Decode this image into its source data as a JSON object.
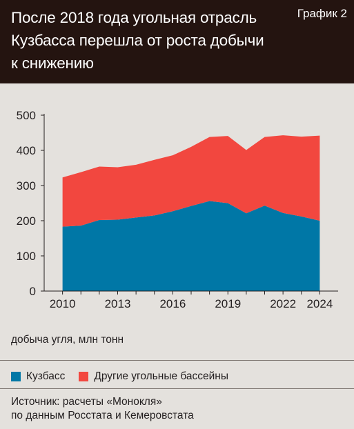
{
  "header": {
    "title_lines": [
      "После 2018 года угольная отрасль",
      "Кузбасса перешла от роста добычи",
      "к снижению"
    ],
    "chart_label": "График 2"
  },
  "unit_note": "добыча угля, млн тонн",
  "legend": [
    {
      "label": "Кузбасс",
      "color": "#0077a6"
    },
    {
      "label": "Другие угольные бассейны",
      "color": "#f2473f"
    }
  ],
  "source_lines": [
    "Источник: расчеты «Монокля»",
    "по данным Росстата и Кемеровстата"
  ],
  "chart_data": {
    "type": "area",
    "stacked": true,
    "x": [
      2010,
      2011,
      2012,
      2013,
      2014,
      2015,
      2016,
      2017,
      2018,
      2019,
      2020,
      2021,
      2022,
      2023,
      2024
    ],
    "x_tick_labels": [
      "2010",
      "2013",
      "2016",
      "2019",
      "2022",
      "2024"
    ],
    "ylim": [
      0,
      500
    ],
    "y_ticks": [
      0,
      100,
      200,
      300,
      400,
      500
    ],
    "series": [
      {
        "name": "Кузбасс",
        "color": "#0077a6",
        "values": [
          183,
          186,
          202,
          203,
          209,
          215,
          227,
          242,
          256,
          250,
          221,
          243,
          222,
          212,
          200
        ]
      },
      {
        "name": "Другие угольные бассейны",
        "color": "#f2473f",
        "values": [
          140,
          152,
          152,
          149,
          150,
          158,
          159,
          168,
          182,
          191,
          180,
          195,
          221,
          227,
          242
        ]
      }
    ],
    "grid": false
  }
}
